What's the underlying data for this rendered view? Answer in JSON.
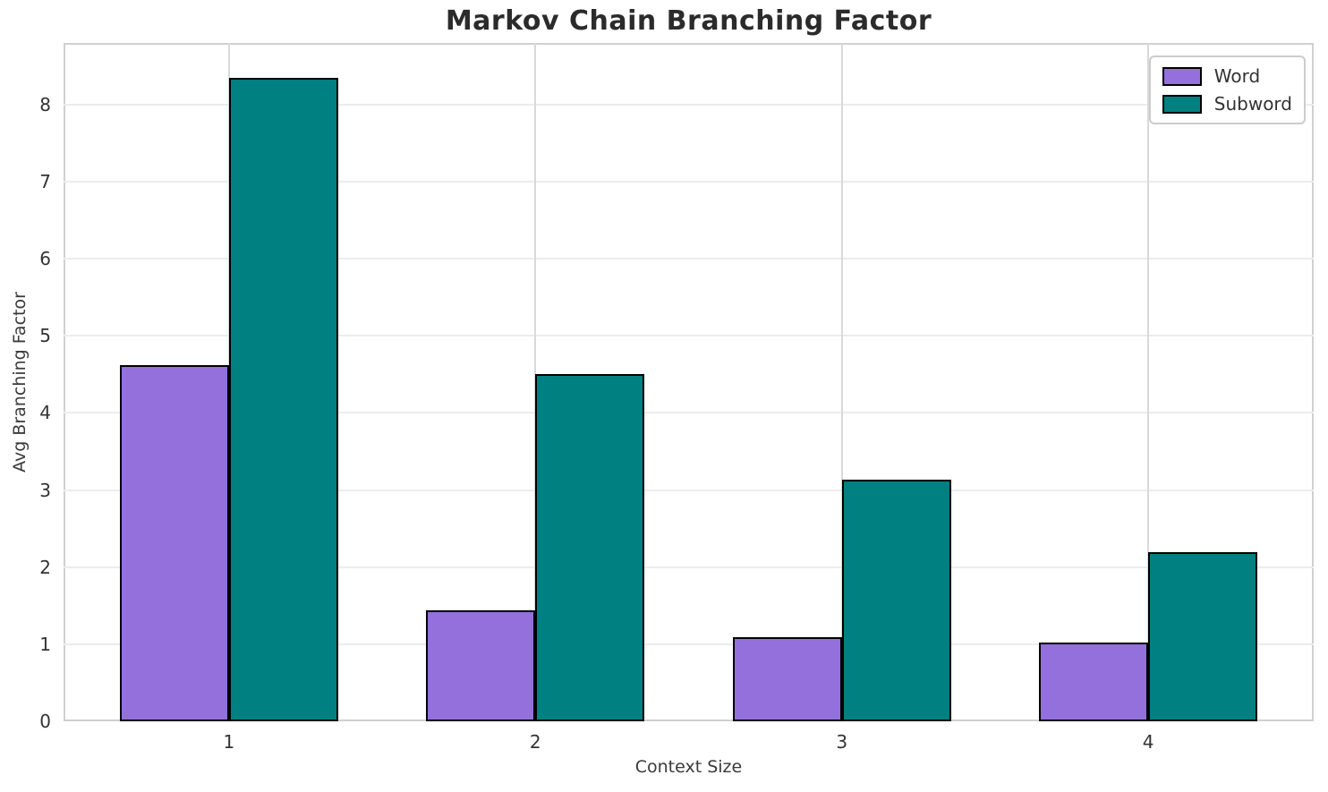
{
  "chart_data": {
    "type": "bar",
    "title": "Markov Chain Branching Factor",
    "xlabel": "Context Size",
    "ylabel": "Avg Branching Factor",
    "categories": [
      "1",
      "2",
      "3",
      "4"
    ],
    "x": [
      1,
      2,
      3,
      4
    ],
    "series": [
      {
        "name": "Word",
        "color": "#9370DB",
        "values": [
          4.62,
          1.44,
          1.09,
          1.02
        ]
      },
      {
        "name": "Subword",
        "color": "#008080",
        "values": [
          8.35,
          4.5,
          3.13,
          2.2
        ]
      }
    ],
    "bar_width": 0.356,
    "bar_edge_color": "#000000",
    "ylim": [
      0,
      8.8
    ],
    "xlim": [
      0.46,
      4.54
    ],
    "yticks": [
      0,
      1,
      2,
      3,
      4,
      5,
      6,
      7,
      8
    ],
    "grid": "both",
    "legend": {
      "position": "upper right",
      "entries": [
        "Word",
        "Subword"
      ]
    },
    "colors": {
      "title_text": "#2b2b2b",
      "tick_text": "#333333",
      "axis_label_text": "#3a3a3a",
      "horizontal_grid": "#ececec",
      "vertical_grid": "#d9d9d9",
      "spine": "#d0d0d0",
      "background": "#ffffff"
    }
  }
}
